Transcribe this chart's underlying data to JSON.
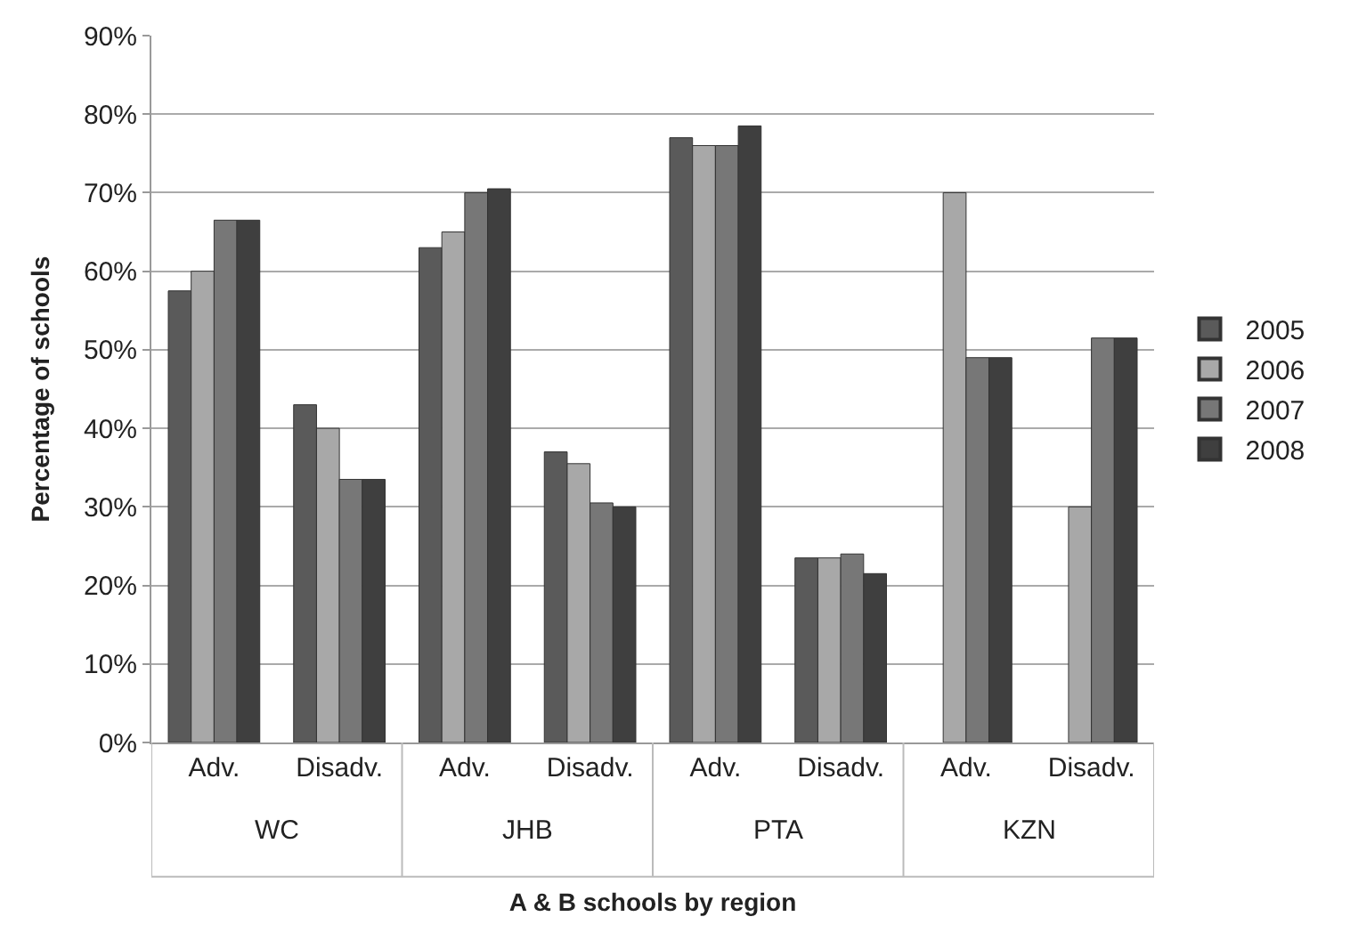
{
  "chart_data": {
    "type": "bar",
    "xlabel": "A & B schools by region",
    "ylabel": "Percentage of schools",
    "categories": [
      "Adv.",
      "Disadv.",
      "Adv.",
      "Disadv.",
      "Adv.",
      "Disadv.",
      "Adv.",
      "Disadv."
    ],
    "series": [
      {
        "name": "2005",
        "color": "#5a5a5a",
        "values": [
          57.5,
          43,
          63,
          37,
          77,
          23.5,
          null,
          null
        ]
      },
      {
        "name": "2006",
        "color": "#a8a8a8",
        "values": [
          60,
          40,
          65,
          35.5,
          76,
          23.5,
          70,
          30
        ]
      },
      {
        "name": "2007",
        "color": "#777777",
        "values": [
          66.5,
          33.5,
          70,
          30.5,
          76,
          24,
          49,
          51.5
        ]
      },
      {
        "name": "2008",
        "color": "#3f3f3f",
        "values": [
          66.5,
          33.5,
          70.5,
          30,
          78.5,
          21.5,
          49,
          51.5
        ]
      }
    ],
    "annotations": [
      "WC",
      "JHB",
      "PTA",
      "KZN"
    ],
    "ylim": [
      0,
      90
    ],
    "yticks": [
      {
        "value": 0,
        "label": "0%"
      },
      {
        "value": 10,
        "label": "10%"
      },
      {
        "value": 20,
        "label": "20%"
      },
      {
        "value": 30,
        "label": "30%"
      },
      {
        "value": 40,
        "label": "40%"
      },
      {
        "value": 50,
        "label": "50%"
      },
      {
        "value": 60,
        "label": "60%"
      },
      {
        "value": 70,
        "label": "70%"
      },
      {
        "value": 80,
        "label": "80%"
      },
      {
        "value": 90,
        "label": "90%"
      }
    ],
    "grid": "y",
    "legend": "right"
  }
}
